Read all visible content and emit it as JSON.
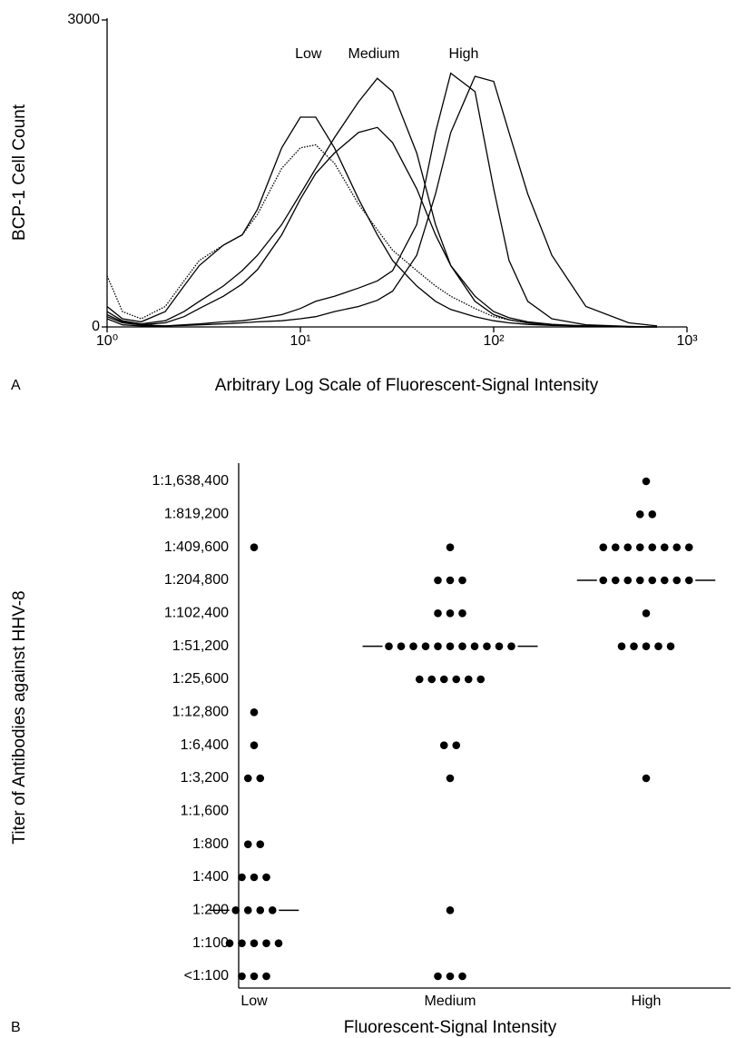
{
  "chart_data": [
    {
      "type": "line",
      "panel_label": "A",
      "y_label": "BCP-1 Cell Count",
      "x_label": "Arbitrary Log Scale of Fluorescent-Signal Intensity",
      "x_scale": "log",
      "xlim": [
        1,
        1000
      ],
      "ylim": [
        0,
        3000
      ],
      "xticks": [
        {
          "value": 1,
          "label": "10⁰"
        },
        {
          "value": 10,
          "label": "10¹"
        },
        {
          "value": 100,
          "label": "10²"
        },
        {
          "value": 1000,
          "label": "10³"
        }
      ],
      "yticks": [
        0,
        3000
      ],
      "annotations": [
        {
          "text": "Low",
          "x": 11
        },
        {
          "text": "Medium",
          "x": 24
        },
        {
          "text": "High",
          "x": 70
        }
      ],
      "x": [
        1,
        1.2,
        1.5,
        2,
        2.5,
        3,
        4,
        5,
        6,
        8,
        10,
        12,
        15,
        20,
        25,
        30,
        40,
        50,
        60,
        80,
        100,
        120,
        150,
        200,
        300,
        500,
        700
      ],
      "series": [
        {
          "color": "#000",
          "style": "solid",
          "values": [
            200,
            80,
            50,
            150,
            400,
            600,
            800,
            900,
            1150,
            1750,
            2050,
            2050,
            1750,
            1250,
            900,
            650,
            400,
            250,
            170,
            100,
            60,
            40,
            25,
            15,
            8,
            0,
            0
          ]
        },
        {
          "color": "#000",
          "style": "dotted",
          "values": [
            500,
            150,
            80,
            200,
            450,
            650,
            800,
            900,
            1100,
            1550,
            1750,
            1780,
            1600,
            1200,
            950,
            750,
            550,
            400,
            300,
            180,
            100,
            70,
            40,
            20,
            10,
            0,
            0
          ]
        },
        {
          "color": "#000",
          "style": "solid",
          "values": [
            150,
            60,
            30,
            60,
            150,
            250,
            400,
            550,
            700,
            1000,
            1300,
            1550,
            1850,
            2200,
            2430,
            2300,
            1700,
            1000,
            600,
            250,
            120,
            70,
            40,
            20,
            5,
            0,
            0
          ]
        },
        {
          "color": "#000",
          "style": "solid",
          "values": [
            100,
            40,
            20,
            40,
            100,
            180,
            300,
            420,
            560,
            900,
            1250,
            1500,
            1700,
            1900,
            1950,
            1800,
            1350,
            900,
            600,
            300,
            150,
            90,
            50,
            25,
            10,
            0,
            0
          ]
        },
        {
          "color": "#000",
          "style": "solid",
          "values": [
            80,
            20,
            10,
            10,
            20,
            30,
            50,
            60,
            80,
            120,
            180,
            250,
            300,
            380,
            450,
            550,
            1000,
            1900,
            2480,
            2300,
            1350,
            650,
            250,
            80,
            20,
            5,
            0
          ]
        },
        {
          "color": "#000",
          "style": "solid",
          "values": [
            120,
            50,
            20,
            10,
            15,
            20,
            30,
            40,
            50,
            60,
            80,
            100,
            150,
            200,
            260,
            350,
            700,
            1300,
            1900,
            2450,
            2400,
            1900,
            1300,
            700,
            200,
            40,
            10
          ]
        }
      ]
    },
    {
      "type": "dot",
      "panel_label": "B",
      "y_label": "Titer of Antibodies against HHV-8",
      "x_label": "Fluorescent-Signal Intensity",
      "categories": [
        "Low",
        "Medium",
        "High"
      ],
      "y_categories": [
        "<1:100",
        "1:100",
        "1:200",
        "1:400",
        "1:800",
        "1:1,600",
        "1:3,200",
        "1:6,400",
        "1:12,800",
        "1:25,600",
        "1:51,200",
        "1:102,400",
        "1:204,800",
        "1:409,600",
        "1:819,200",
        "1:1,638,400"
      ],
      "counts": [
        [
          3,
          5,
          4,
          3,
          2,
          0,
          2,
          1,
          1,
          0,
          0,
          0,
          0,
          1,
          0,
          0
        ],
        [
          3,
          0,
          1,
          0,
          0,
          0,
          1,
          2,
          0,
          6,
          11,
          3,
          3,
          1,
          0,
          0
        ],
        [
          0,
          0,
          0,
          0,
          0,
          0,
          1,
          0,
          0,
          0,
          5,
          1,
          8,
          8,
          2,
          1
        ]
      ],
      "medians": [
        "1:200",
        "1:51,200",
        "1:204,800"
      ],
      "color": "#000"
    }
  ]
}
